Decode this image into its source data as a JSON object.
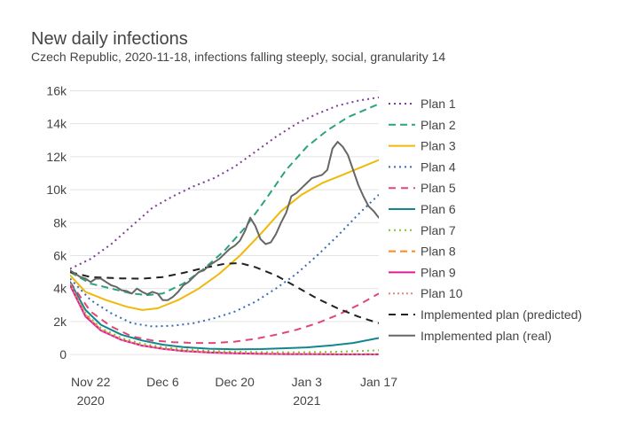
{
  "chart_data": {
    "type": "line",
    "title": "New daily infections",
    "subtitle": "Czech Republic, 2020-11-18, infections falling steeply, social, granularity 14",
    "xlim": [
      "2020-11-18",
      "2021-01-17"
    ],
    "ylim": [
      -800,
      16400
    ],
    "grid": "on (horizontal)",
    "legend_placement": "right",
    "x_ticks": [
      {
        "date": "2020-11-22",
        "label": "Nov 22",
        "sublabel": "2020"
      },
      {
        "date": "2020-12-06",
        "label": "Dec 6",
        "sublabel": ""
      },
      {
        "date": "2020-12-20",
        "label": "Dec 20",
        "sublabel": ""
      },
      {
        "date": "2021-01-03",
        "label": "Jan 3",
        "sublabel": "2021"
      },
      {
        "date": "2021-01-17",
        "label": "Jan 17",
        "sublabel": ""
      }
    ],
    "y_ticks": [
      {
        "value": 0,
        "label": "0"
      },
      {
        "value": 2000,
        "label": "2k"
      },
      {
        "value": 4000,
        "label": "4k"
      },
      {
        "value": 6000,
        "label": "6k"
      },
      {
        "value": 8000,
        "label": "8k"
      },
      {
        "value": 10000,
        "label": "10k"
      },
      {
        "value": 12000,
        "label": "12k"
      },
      {
        "value": 14000,
        "label": "14k"
      },
      {
        "value": 16000,
        "label": "16k"
      }
    ],
    "series": [
      {
        "name": "Plan 1",
        "color": "#7d3c98",
        "dash": "2,4",
        "width": 2,
        "points": [
          [
            "2020-11-18",
            5200
          ],
          [
            "2020-11-22",
            5800
          ],
          [
            "2020-11-26",
            6700
          ],
          [
            "2020-11-30",
            7800
          ],
          [
            "2020-12-04",
            8900
          ],
          [
            "2020-12-08",
            9600
          ],
          [
            "2020-12-12",
            10200
          ],
          [
            "2020-12-16",
            10700
          ],
          [
            "2020-12-20",
            11400
          ],
          [
            "2020-12-24",
            12300
          ],
          [
            "2020-12-28",
            13200
          ],
          [
            "2021-01-01",
            14000
          ],
          [
            "2021-01-05",
            14600
          ],
          [
            "2021-01-09",
            15100
          ],
          [
            "2021-01-13",
            15400
          ],
          [
            "2021-01-17",
            15600
          ]
        ]
      },
      {
        "name": "Plan 2",
        "color": "#2ba37e",
        "dash": "8,5",
        "width": 2,
        "points": [
          [
            "2020-11-18",
            5000
          ],
          [
            "2020-11-22",
            4300
          ],
          [
            "2020-11-26",
            4000
          ],
          [
            "2020-11-30",
            3700
          ],
          [
            "2020-12-03",
            3600
          ],
          [
            "2020-12-06",
            3700
          ],
          [
            "2020-12-10",
            4300
          ],
          [
            "2020-12-14",
            5200
          ],
          [
            "2020-12-18",
            6300
          ],
          [
            "2020-12-22",
            7700
          ],
          [
            "2020-12-26",
            9400
          ],
          [
            "2020-12-30",
            11200
          ],
          [
            "2021-01-03",
            12600
          ],
          [
            "2021-01-07",
            13600
          ],
          [
            "2021-01-11",
            14400
          ],
          [
            "2021-01-17",
            15200
          ]
        ]
      },
      {
        "name": "Plan 3",
        "color": "#f0b90a",
        "dash": "",
        "width": 2,
        "points": [
          [
            "2020-11-18",
            4800
          ],
          [
            "2020-11-21",
            3800
          ],
          [
            "2020-11-25",
            3300
          ],
          [
            "2020-11-29",
            2900
          ],
          [
            "2020-12-02",
            2700
          ],
          [
            "2020-12-05",
            2800
          ],
          [
            "2020-12-09",
            3300
          ],
          [
            "2020-12-13",
            4000
          ],
          [
            "2020-12-17",
            4900
          ],
          [
            "2020-12-21",
            6000
          ],
          [
            "2020-12-25",
            7300
          ],
          [
            "2020-12-29",
            8700
          ],
          [
            "2021-01-02",
            9700
          ],
          [
            "2021-01-06",
            10400
          ],
          [
            "2021-01-10",
            10900
          ],
          [
            "2021-01-17",
            11800
          ]
        ]
      },
      {
        "name": "Plan 4",
        "color": "#3a68b5",
        "dash": "2,4",
        "width": 2,
        "points": [
          [
            "2020-11-18",
            4600
          ],
          [
            "2020-11-22",
            3300
          ],
          [
            "2020-11-26",
            2500
          ],
          [
            "2020-11-30",
            1900
          ],
          [
            "2020-12-04",
            1700
          ],
          [
            "2020-12-08",
            1750
          ],
          [
            "2020-12-12",
            1900
          ],
          [
            "2020-12-16",
            2200
          ],
          [
            "2020-12-20",
            2600
          ],
          [
            "2020-12-24",
            3200
          ],
          [
            "2020-12-28",
            4000
          ],
          [
            "2021-01-01",
            4900
          ],
          [
            "2021-01-05",
            6000
          ],
          [
            "2021-01-09",
            7200
          ],
          [
            "2021-01-13",
            8500
          ],
          [
            "2021-01-17",
            9700
          ]
        ]
      },
      {
        "name": "Plan 5",
        "color": "#e0467a",
        "dash": "8,6",
        "width": 2,
        "points": [
          [
            "2020-11-18",
            4400
          ],
          [
            "2020-11-22",
            2600
          ],
          [
            "2020-11-26",
            1700
          ],
          [
            "2020-11-30",
            1100
          ],
          [
            "2020-12-04",
            850
          ],
          [
            "2020-12-08",
            750
          ],
          [
            "2020-12-12",
            700
          ],
          [
            "2020-12-16",
            700
          ],
          [
            "2020-12-20",
            780
          ],
          [
            "2020-12-24",
            950
          ],
          [
            "2020-12-28",
            1200
          ],
          [
            "2021-01-01",
            1500
          ],
          [
            "2021-01-05",
            1900
          ],
          [
            "2021-01-09",
            2400
          ],
          [
            "2021-01-13",
            3000
          ],
          [
            "2021-01-17",
            3700
          ]
        ]
      },
      {
        "name": "Plan 6",
        "color": "#13868c",
        "dash": "",
        "width": 2,
        "points": [
          [
            "2020-11-18",
            4400
          ],
          [
            "2020-11-21",
            2700
          ],
          [
            "2020-11-24",
            1800
          ],
          [
            "2020-11-28",
            1200
          ],
          [
            "2020-12-02",
            850
          ],
          [
            "2020-12-06",
            600
          ],
          [
            "2020-12-10",
            450
          ],
          [
            "2020-12-15",
            350
          ],
          [
            "2020-12-20",
            320
          ],
          [
            "2020-12-25",
            330
          ],
          [
            "2020-12-30",
            380
          ],
          [
            "2021-01-03",
            430
          ],
          [
            "2021-01-08",
            560
          ],
          [
            "2021-01-12",
            700
          ],
          [
            "2021-01-17",
            1000
          ]
        ]
      },
      {
        "name": "Plan 7",
        "color": "#7cc43c",
        "dash": "2,4",
        "width": 2,
        "points": [
          [
            "2020-11-18",
            4300
          ],
          [
            "2020-11-21",
            2500
          ],
          [
            "2020-11-24",
            1600
          ],
          [
            "2020-11-28",
            1000
          ],
          [
            "2020-12-02",
            650
          ],
          [
            "2020-12-06",
            450
          ],
          [
            "2020-12-10",
            320
          ],
          [
            "2020-12-15",
            220
          ],
          [
            "2020-12-20",
            170
          ],
          [
            "2020-12-25",
            140
          ],
          [
            "2020-12-30",
            130
          ],
          [
            "2021-01-04",
            140
          ],
          [
            "2021-01-08",
            160
          ],
          [
            "2021-01-12",
            200
          ],
          [
            "2021-01-17",
            260
          ]
        ]
      },
      {
        "name": "Plan 8",
        "color": "#f68a1e",
        "dash": "8,5",
        "width": 2,
        "points": [
          [
            "2020-11-18",
            4300
          ],
          [
            "2020-11-21",
            2400
          ],
          [
            "2020-11-24",
            1500
          ],
          [
            "2020-11-28",
            900
          ],
          [
            "2020-12-02",
            560
          ],
          [
            "2020-12-06",
            360
          ],
          [
            "2020-12-10",
            230
          ],
          [
            "2020-12-15",
            140
          ],
          [
            "2020-12-20",
            90
          ],
          [
            "2020-12-25",
            60
          ],
          [
            "2020-12-30",
            40
          ],
          [
            "2021-01-04",
            30
          ],
          [
            "2021-01-10",
            20
          ],
          [
            "2021-01-17",
            15
          ]
        ]
      },
      {
        "name": "Plan 9",
        "color": "#e21a96",
        "dash": "",
        "width": 2,
        "points": [
          [
            "2020-11-18",
            4200
          ],
          [
            "2020-11-21",
            2300
          ],
          [
            "2020-11-24",
            1450
          ],
          [
            "2020-11-28",
            880
          ],
          [
            "2020-12-02",
            540
          ],
          [
            "2020-12-06",
            340
          ],
          [
            "2020-12-10",
            210
          ],
          [
            "2020-12-15",
            120
          ],
          [
            "2020-12-20",
            70
          ],
          [
            "2020-12-25",
            40
          ],
          [
            "2020-12-30",
            25
          ],
          [
            "2021-01-04",
            15
          ],
          [
            "2021-01-10",
            8
          ],
          [
            "2021-01-17",
            5
          ]
        ]
      },
      {
        "name": "Plan 10",
        "color": "#e1877e",
        "dash": "2,3",
        "width": 2,
        "points": [
          [
            "2020-11-18",
            4300
          ],
          [
            "2020-11-21",
            2400
          ],
          [
            "2020-11-24",
            1500
          ],
          [
            "2020-11-28",
            900
          ],
          [
            "2020-12-02",
            550
          ],
          [
            "2020-12-06",
            350
          ],
          [
            "2020-12-10",
            220
          ],
          [
            "2020-12-15",
            130
          ],
          [
            "2020-12-20",
            80
          ],
          [
            "2020-12-25",
            50
          ],
          [
            "2020-12-30",
            30
          ],
          [
            "2021-01-04",
            20
          ],
          [
            "2021-01-10",
            12
          ],
          [
            "2021-01-17",
            8
          ]
        ]
      },
      {
        "name": "Implemented plan (predicted)",
        "color": "#222222",
        "dash": "8,6",
        "width": 2,
        "points": [
          [
            "2020-11-18",
            5000
          ],
          [
            "2020-11-22",
            4700
          ],
          [
            "2020-11-28",
            4620
          ],
          [
            "2020-12-02",
            4600
          ],
          [
            "2020-12-06",
            4700
          ],
          [
            "2020-12-10",
            4950
          ],
          [
            "2020-12-14",
            5250
          ],
          [
            "2020-12-18",
            5500
          ],
          [
            "2020-12-21",
            5550
          ],
          [
            "2020-12-24",
            5300
          ],
          [
            "2020-12-28",
            4800
          ],
          [
            "2021-01-01",
            4100
          ],
          [
            "2021-01-05",
            3400
          ],
          [
            "2021-01-09",
            2800
          ],
          [
            "2021-01-13",
            2300
          ],
          [
            "2021-01-17",
            1900
          ]
        ]
      },
      {
        "name": "Implemented plan (real)",
        "color": "#666666",
        "dash": "",
        "width": 2,
        "points": [
          [
            "2020-11-18",
            5100
          ],
          [
            "2020-11-19",
            4900
          ],
          [
            "2020-11-20",
            4700
          ],
          [
            "2020-11-21",
            4600
          ],
          [
            "2020-11-22",
            4400
          ],
          [
            "2020-11-23",
            4600
          ],
          [
            "2020-11-24",
            4600
          ],
          [
            "2020-11-25",
            4400
          ],
          [
            "2020-11-26",
            4200
          ],
          [
            "2020-11-27",
            4100
          ],
          [
            "2020-11-28",
            3900
          ],
          [
            "2020-11-29",
            3850
          ],
          [
            "2020-11-30",
            3700
          ],
          [
            "2020-12-01",
            4000
          ],
          [
            "2020-12-02",
            3800
          ],
          [
            "2020-12-03",
            3650
          ],
          [
            "2020-12-04",
            3800
          ],
          [
            "2020-12-05",
            3700
          ],
          [
            "2020-12-06",
            3300
          ],
          [
            "2020-12-07",
            3300
          ],
          [
            "2020-12-08",
            3500
          ],
          [
            "2020-12-09",
            3800
          ],
          [
            "2020-12-10",
            4200
          ],
          [
            "2020-12-11",
            4400
          ],
          [
            "2020-12-12",
            4700
          ],
          [
            "2020-12-13",
            5000
          ],
          [
            "2020-12-14",
            5100
          ],
          [
            "2020-12-15",
            5400
          ],
          [
            "2020-12-16",
            5600
          ],
          [
            "2020-12-17",
            5800
          ],
          [
            "2020-12-18",
            6100
          ],
          [
            "2020-12-19",
            6400
          ],
          [
            "2020-12-20",
            6600
          ],
          [
            "2020-12-21",
            6900
          ],
          [
            "2020-12-22",
            7500
          ],
          [
            "2020-12-23",
            8300
          ],
          [
            "2020-12-24",
            7800
          ],
          [
            "2020-12-25",
            7000
          ],
          [
            "2020-12-26",
            6700
          ],
          [
            "2020-12-27",
            6800
          ],
          [
            "2020-12-28",
            7300
          ],
          [
            "2020-12-29",
            8000
          ],
          [
            "2020-12-30",
            8600
          ],
          [
            "2020-12-31",
            9600
          ],
          [
            "2021-01-01",
            9800
          ],
          [
            "2021-01-02",
            10100
          ],
          [
            "2021-01-03",
            10400
          ],
          [
            "2021-01-04",
            10700
          ],
          [
            "2021-01-05",
            10800
          ],
          [
            "2021-01-06",
            10900
          ],
          [
            "2021-01-07",
            11200
          ],
          [
            "2021-01-08",
            12500
          ],
          [
            "2021-01-09",
            12900
          ],
          [
            "2021-01-10",
            12600
          ],
          [
            "2021-01-11",
            12100
          ],
          [
            "2021-01-12",
            11200
          ],
          [
            "2021-01-13",
            10300
          ],
          [
            "2021-01-14",
            9600
          ],
          [
            "2021-01-15",
            9000
          ],
          [
            "2021-01-16",
            8700
          ],
          [
            "2021-01-17",
            8300
          ]
        ]
      }
    ]
  }
}
